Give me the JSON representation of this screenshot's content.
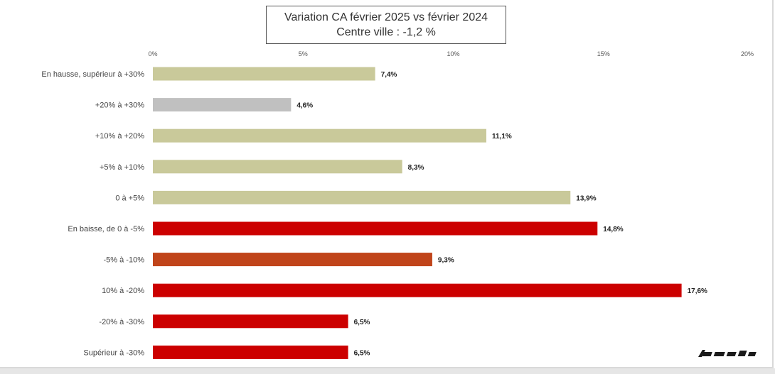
{
  "chart_data": {
    "type": "bar",
    "orientation": "horizontal",
    "title": "Variation CA  février 2025 vs février 2024",
    "subtitle": "Centre ville  :  -1,2 %",
    "x_ticks": [
      "0%",
      "5%",
      "10%",
      "15%",
      "20%"
    ],
    "xlim": [
      0,
      20
    ],
    "grid": false,
    "legend": "none",
    "categories": [
      "En hausse, supérieur à +30%",
      "+20% à +30%",
      "+10% à +20%",
      "+5% à +10%",
      "0 à +5%",
      "En baisse, de 0 à -5%",
      "-5% à -10%",
      "10% à -20%",
      "-20% à -30%",
      "Supérieur à -30%"
    ],
    "values": [
      7.4,
      4.6,
      11.1,
      8.3,
      13.9,
      14.8,
      9.3,
      17.6,
      6.5,
      6.5
    ],
    "value_labels": [
      "7,4%",
      "4,6%",
      "11,1%",
      "8,3%",
      "13,9%",
      "14,8%",
      "9,3%",
      "17,6%",
      "6,5%",
      "6,5%"
    ],
    "bar_colors": [
      "#c9c99a",
      "#c0c0c0",
      "#c9c99a",
      "#c9c99a",
      "#c9c99a",
      "#cc0000",
      "#c0441a",
      "#cc0000",
      "#cc0000",
      "#cc0000"
    ]
  },
  "logo": {
    "color": "#1a1a1a"
  }
}
